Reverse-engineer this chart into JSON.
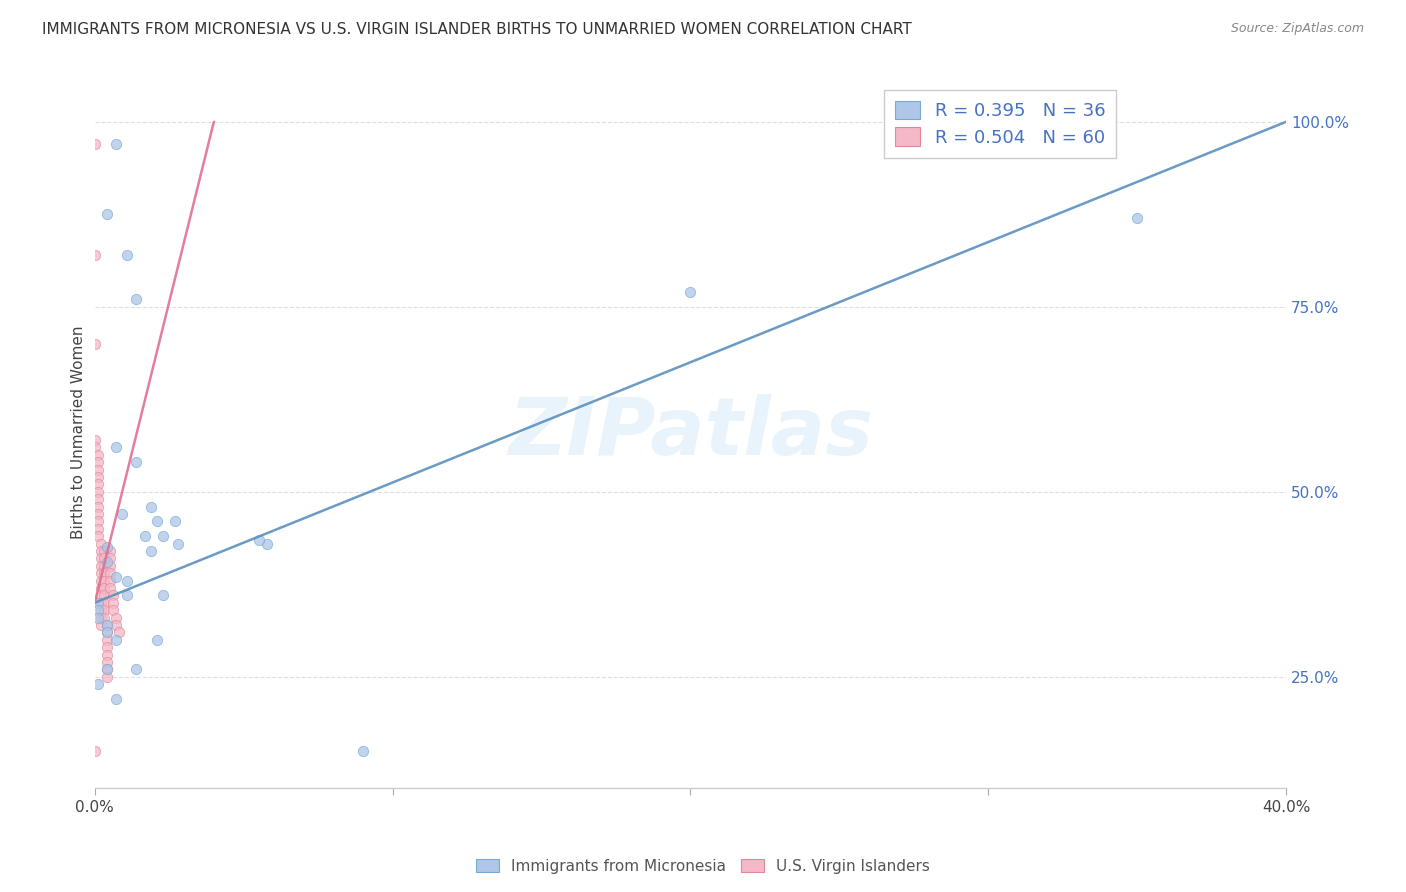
{
  "title": "IMMIGRANTS FROM MICRONESIA VS U.S. VIRGIN ISLANDER BIRTHS TO UNMARRIED WOMEN CORRELATION CHART",
  "source": "Source: ZipAtlas.com",
  "ylabel": "Births to Unmarried Women",
  "legend": [
    {
      "color": "#aec6e8",
      "edge": "#7aaacf",
      "R": "0.395",
      "N": "36",
      "label": "Immigrants from Micronesia"
    },
    {
      "color": "#f4b8c8",
      "edge": "#e08898",
      "R": "0.504",
      "N": "60",
      "label": "U.S. Virgin Islanders"
    }
  ],
  "blue_scatter_x": [
    0.007,
    0.004,
    0.011,
    0.007,
    0.014,
    0.019,
    0.021,
    0.017,
    0.023,
    0.004,
    0.004,
    0.007,
    0.011,
    0.011,
    0.001,
    0.001,
    0.001,
    0.004,
    0.004,
    0.007,
    0.009,
    0.014,
    0.019,
    0.023,
    0.028,
    0.058,
    0.001,
    0.004,
    0.007,
    0.014,
    0.021,
    0.027,
    0.35,
    0.2,
    0.055,
    0.09
  ],
  "blue_scatter_y": [
    0.97,
    0.875,
    0.82,
    0.56,
    0.76,
    0.48,
    0.46,
    0.44,
    0.44,
    0.425,
    0.405,
    0.385,
    0.38,
    0.36,
    0.35,
    0.34,
    0.33,
    0.32,
    0.31,
    0.3,
    0.47,
    0.54,
    0.42,
    0.36,
    0.43,
    0.43,
    0.24,
    0.26,
    0.22,
    0.26,
    0.3,
    0.46,
    0.87,
    0.77,
    0.435,
    0.15
  ],
  "pink_scatter_x": [
    0.0,
    0.0,
    0.0,
    0.0,
    0.0,
    0.0,
    0.001,
    0.001,
    0.001,
    0.001,
    0.001,
    0.001,
    0.001,
    0.001,
    0.001,
    0.001,
    0.001,
    0.001,
    0.002,
    0.002,
    0.002,
    0.002,
    0.002,
    0.002,
    0.002,
    0.002,
    0.002,
    0.002,
    0.002,
    0.002,
    0.003,
    0.003,
    0.003,
    0.003,
    0.003,
    0.003,
    0.003,
    0.003,
    0.003,
    0.003,
    0.004,
    0.004,
    0.004,
    0.004,
    0.004,
    0.004,
    0.004,
    0.004,
    0.005,
    0.005,
    0.005,
    0.005,
    0.005,
    0.005,
    0.006,
    0.006,
    0.006,
    0.007,
    0.007,
    0.008
  ],
  "pink_scatter_y": [
    0.82,
    0.97,
    0.7,
    0.57,
    0.56,
    0.15,
    0.55,
    0.54,
    0.53,
    0.52,
    0.51,
    0.5,
    0.49,
    0.48,
    0.47,
    0.46,
    0.45,
    0.44,
    0.43,
    0.42,
    0.41,
    0.4,
    0.39,
    0.38,
    0.37,
    0.36,
    0.35,
    0.34,
    0.33,
    0.32,
    0.42,
    0.41,
    0.4,
    0.39,
    0.38,
    0.37,
    0.36,
    0.35,
    0.34,
    0.33,
    0.32,
    0.31,
    0.3,
    0.29,
    0.28,
    0.27,
    0.26,
    0.25,
    0.42,
    0.41,
    0.4,
    0.39,
    0.38,
    0.37,
    0.36,
    0.35,
    0.34,
    0.33,
    0.32,
    0.31
  ],
  "blue_line_x": [
    0.0,
    0.4
  ],
  "blue_line_y": [
    0.35,
    1.0
  ],
  "pink_line_x": [
    0.0,
    0.04
  ],
  "pink_line_y": [
    0.35,
    1.0
  ],
  "xlim": [
    0.0,
    0.4
  ],
  "ylim": [
    0.1,
    1.06
  ],
  "xtick_positions": [
    0.0,
    0.1,
    0.2,
    0.3,
    0.4
  ],
  "xtick_labels": [
    "0.0%",
    "",
    "",
    "",
    "40.0%"
  ],
  "ytick_positions": [
    0.25,
    0.5,
    0.75,
    1.0
  ],
  "ytick_labels": [
    "25.0%",
    "50.0%",
    "75.0%",
    "100.0%"
  ],
  "watermark_text": "ZIPatlas",
  "scatter_size": 55,
  "scatter_alpha": 0.75,
  "line_width": 1.8
}
